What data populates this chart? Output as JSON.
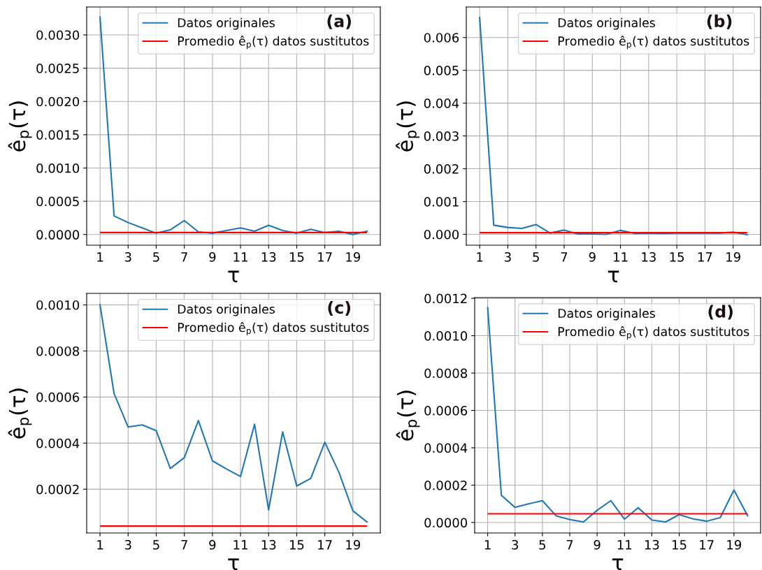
{
  "chart_data": [
    {
      "type": "line",
      "x": [
        1,
        2,
        3,
        4,
        5,
        6,
        7,
        8,
        9,
        10,
        11,
        12,
        13,
        14,
        15,
        16,
        17,
        18,
        19,
        20
      ],
      "series": [
        {
          "name": "Datos originales",
          "color": "#1f77b4",
          "values": [
            0.00327,
            0.00028,
            0.00018,
            0.0001,
            2e-05,
            7e-05,
            0.00021,
            4e-05,
            2e-05,
            6e-05,
            0.0001,
            5e-05,
            0.00014,
            6e-05,
            2e-05,
            8e-05,
            3e-05,
            5e-05,
            0.0,
            5e-05
          ]
        }
      ],
      "ref_lines": [
        {
          "axis": "y",
          "value": 3e-05,
          "label": "Promedio ê$_{p}$(τ) datos sustitutos",
          "color": "#ff0000"
        }
      ],
      "xlim": [
        0.05,
        20.95
      ],
      "xticks": [
        1,
        3,
        5,
        7,
        9,
        11,
        13,
        15,
        17,
        19
      ],
      "ylim": [
        -0.00016,
        0.00342
      ],
      "yticks": [
        {
          "value": 0,
          "label": "0.0000"
        },
        {
          "value": 0.0005,
          "label": "0.0005"
        },
        {
          "value": 0.001,
          "label": "0.0010"
        },
        {
          "value": 0.0015,
          "label": "0.0015"
        },
        {
          "value": 0.002,
          "label": "0.0020"
        },
        {
          "value": 0.0025,
          "label": "0.0025"
        },
        {
          "value": 0.003,
          "label": "0.0030"
        }
      ],
      "xlabel": "τ",
      "ylabel": "ê$_{p}$(τ)",
      "annotations": [
        "(a)"
      ],
      "grid": true,
      "legend": "top right"
    },
    {
      "type": "line",
      "x": [
        1,
        2,
        3,
        4,
        5,
        6,
        7,
        8,
        9,
        10,
        11,
        12,
        13,
        14,
        15,
        16,
        17,
        18,
        19,
        20
      ],
      "series": [
        {
          "name": "Datos originales",
          "color": "#1f77b4",
          "values": [
            0.00661,
            0.00028,
            0.00021,
            0.00018,
            0.0003,
            4e-05,
            0.00013,
            1e-05,
            1e-05,
            0.0,
            0.00012,
            3e-05,
            4e-05,
            3e-05,
            4e-05,
            4e-05,
            4e-05,
            4e-05,
            7e-05,
            -1e-05
          ]
        }
      ],
      "ref_lines": [
        {
          "axis": "y",
          "value": 5e-05,
          "label": "Promedio ê$_{p}$(τ) datos sustitutos",
          "color": "#ff0000"
        }
      ],
      "xlim": [
        0.05,
        20.95
      ],
      "xticks": [
        1,
        3,
        5,
        7,
        9,
        11,
        13,
        15,
        17,
        19
      ],
      "ylim": [
        -0.00033,
        0.00693
      ],
      "yticks": [
        {
          "value": 0,
          "label": "0.000"
        },
        {
          "value": 0.001,
          "label": "0.001"
        },
        {
          "value": 0.002,
          "label": "0.002"
        },
        {
          "value": 0.003,
          "label": "0.003"
        },
        {
          "value": 0.004,
          "label": "0.004"
        },
        {
          "value": 0.005,
          "label": "0.005"
        },
        {
          "value": 0.006,
          "label": "0.006"
        }
      ],
      "xlabel": "τ",
      "ylabel": "ê$_{p}$(τ)",
      "annotations": [
        "(b)"
      ],
      "grid": true,
      "legend": "top right"
    },
    {
      "type": "line",
      "x": [
        1,
        2,
        3,
        4,
        5,
        6,
        7,
        8,
        9,
        10,
        11,
        12,
        13,
        14,
        15,
        16,
        17,
        18,
        19,
        20
      ],
      "series": [
        {
          "name": "Datos originales",
          "color": "#1f77b4",
          "values": [
            0.001,
            0.000615,
            0.00047,
            0.000479,
            0.000454,
            0.00029,
            0.000337,
            0.000498,
            0.000323,
            0.000288,
            0.000255,
            0.000482,
            0.00011,
            0.000449,
            0.000214,
            0.000247,
            0.000404,
            0.000274,
            0.000106,
            5.8e-05
          ]
        }
      ],
      "ref_lines": [
        {
          "axis": "y",
          "value": 4e-05,
          "label": "Promedio ê$_{p}$(τ) datos sustitutos",
          "color": "#ff0000"
        }
      ],
      "xlim": [
        0.05,
        20.95
      ],
      "xticks": [
        1,
        3,
        5,
        7,
        9,
        11,
        13,
        15,
        17,
        19
      ],
      "ylim": [
        1e-05,
        0.00105
      ],
      "yticks": [
        {
          "value": 0.0002,
          "label": "0.0002"
        },
        {
          "value": 0.0004,
          "label": "0.0004"
        },
        {
          "value": 0.0006,
          "label": "0.0006"
        },
        {
          "value": 0.0008,
          "label": "0.0008"
        },
        {
          "value": 0.001,
          "label": "0.0010"
        }
      ],
      "xlabel": "τ",
      "ylabel": "ê$_{p}$(τ)",
      "annotations": [
        "(c)"
      ],
      "grid": true,
      "legend": "top right"
    },
    {
      "type": "line",
      "x": [
        1,
        2,
        3,
        4,
        5,
        6,
        7,
        8,
        9,
        10,
        11,
        12,
        13,
        14,
        15,
        16,
        17,
        18,
        19,
        20
      ],
      "series": [
        {
          "name": "Datos originales",
          "color": "#1f77b4",
          "values": [
            0.00115,
            0.000146,
            8.1e-05,
            0.0001,
            0.000117,
            3.6e-05,
            1.6e-05,
            3e-06,
            6.5e-05,
            0.000117,
            1.8e-05,
            7.9e-05,
            1.3e-05,
            3e-06,
            4.2e-05,
            2e-05,
            7e-06,
            2.6e-05,
            0.000174,
            3.6e-05
          ]
        }
      ],
      "ref_lines": [
        {
          "axis": "y",
          "value": 4.7e-05,
          "label": "Promedio ê$_{p}$(τ) datos sustitutos",
          "color": "#ff0000"
        }
      ],
      "xlim": [
        0.05,
        20.95
      ],
      "xticks": [
        1,
        3,
        5,
        7,
        9,
        11,
        13,
        15,
        17,
        19
      ],
      "ylim": [
        -5.6e-05,
        0.001204
      ],
      "yticks": [
        {
          "value": 0,
          "label": "0.0000"
        },
        {
          "value": 0.0002,
          "label": "0.0002"
        },
        {
          "value": 0.0004,
          "label": "0.0004"
        },
        {
          "value": 0.0006,
          "label": "0.0006"
        },
        {
          "value": 0.0008,
          "label": "0.0008"
        },
        {
          "value": 0.001,
          "label": "0.0010"
        },
        {
          "value": 0.0012,
          "label": "0.0012"
        }
      ],
      "xlabel": "τ",
      "ylabel": "ê$_{p}$(τ)",
      "annotations": [
        "(d)"
      ],
      "grid": true,
      "legend": "top right"
    }
  ]
}
